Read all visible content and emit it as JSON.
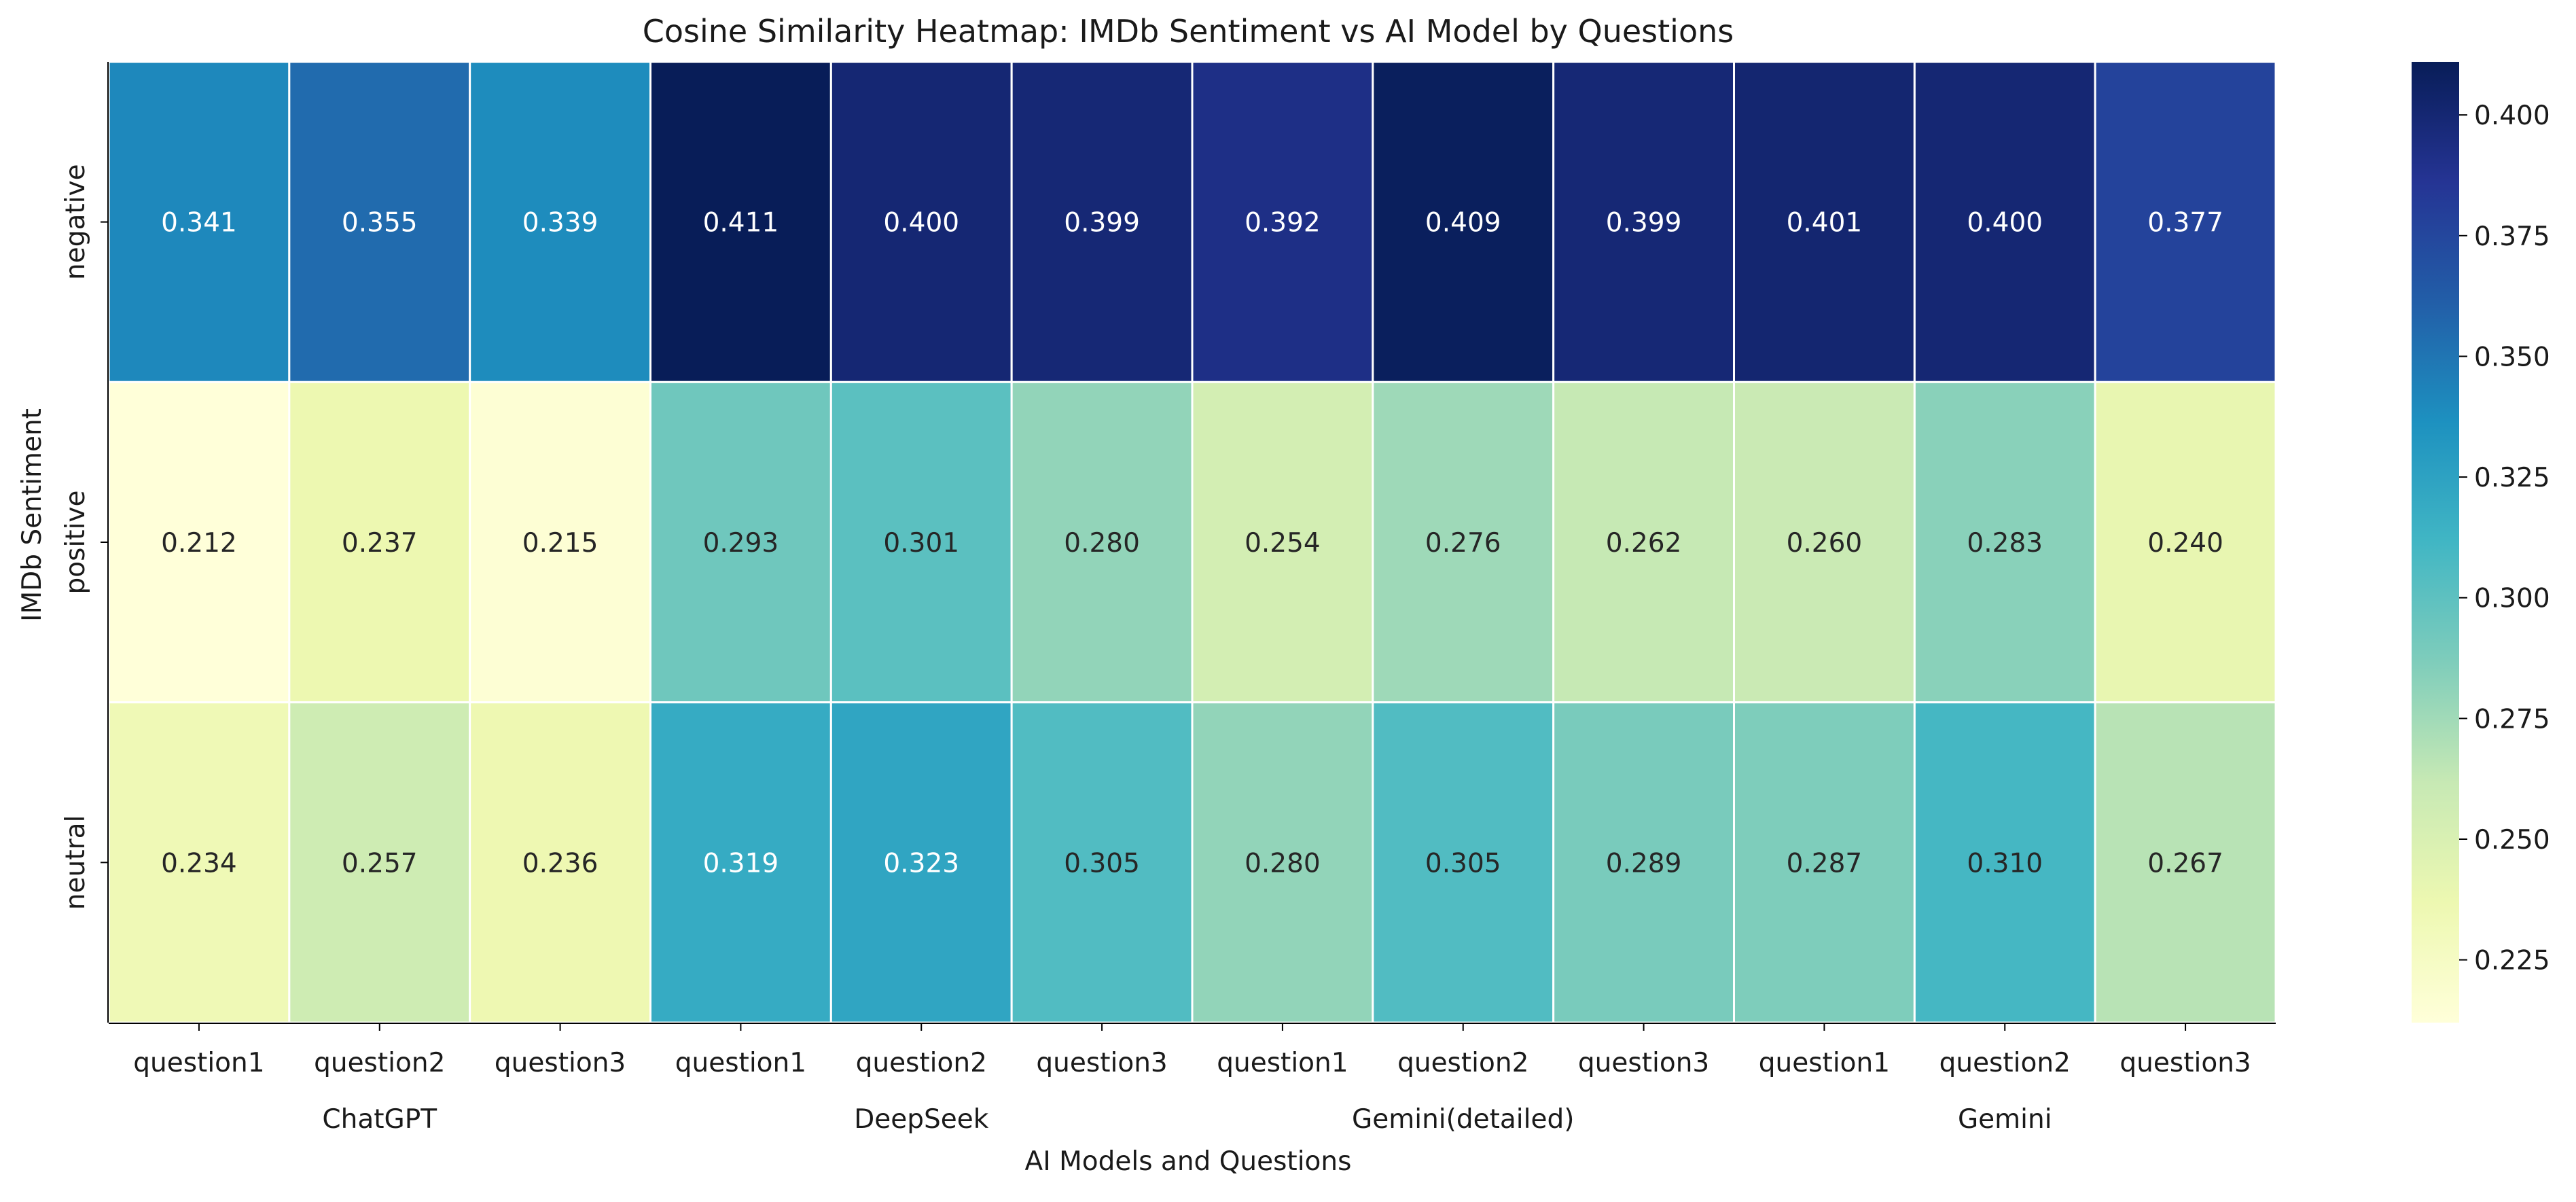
{
  "chart_data": {
    "type": "heatmap",
    "title": "Cosine Similarity Heatmap: IMDb Sentiment vs AI Model by Questions",
    "xlabel": "AI Models and Questions",
    "ylabel": "IMDb Sentiment",
    "rows": [
      "negative",
      "positive",
      "neutral"
    ],
    "columns": [
      "question1",
      "question2",
      "question3",
      "question1",
      "question2",
      "question3",
      "question1",
      "question2",
      "question3",
      "question1",
      "question2",
      "question3"
    ],
    "groups": [
      {
        "name": "ChatGPT",
        "columns": 3
      },
      {
        "name": "DeepSeek",
        "columns": 3
      },
      {
        "name": "Gemini(detailed)",
        "columns": 3
      },
      {
        "name": "Gemini",
        "columns": 3
      }
    ],
    "values": [
      [
        0.341,
        0.355,
        0.339,
        0.411,
        0.4,
        0.399,
        0.392,
        0.409,
        0.399,
        0.401,
        0.4,
        0.377
      ],
      [
        0.212,
        0.237,
        0.215,
        0.293,
        0.301,
        0.28,
        0.254,
        0.276,
        0.262,
        0.26,
        0.283,
        0.24
      ],
      [
        0.234,
        0.257,
        0.236,
        0.319,
        0.323,
        0.305,
        0.28,
        0.305,
        0.289,
        0.287,
        0.31,
        0.267
      ]
    ],
    "value_format": "0.000",
    "colormap": "YlGnBu",
    "color_range": [
      0.212,
      0.411
    ],
    "colorbar_ticks": [
      "0.225",
      "0.250",
      "0.275",
      "0.300",
      "0.325",
      "0.350",
      "0.375",
      "0.400"
    ],
    "colormap_stops": [
      "#ffffd9",
      "#edf8b1",
      "#c7e9b4",
      "#7fcdbb",
      "#41b6c4",
      "#1d91c0",
      "#225ea8",
      "#253494",
      "#081d58"
    ]
  }
}
